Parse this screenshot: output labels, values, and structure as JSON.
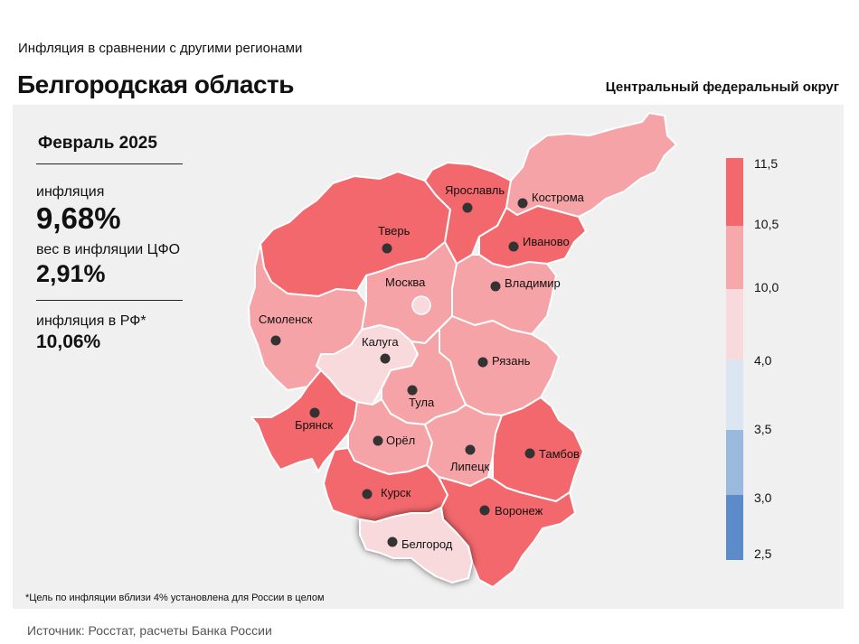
{
  "header": {
    "subtitle": "Инфляция  в сравнении  с другими  регионами",
    "title": "Белгородская область",
    "district": "Центральный федеральный округ"
  },
  "stats": {
    "period": "Февраль 2025",
    "inflation_label": "инфляция",
    "inflation_value": "9,68%",
    "weight_label": "вес в инфляции  ЦФО",
    "weight_value": "2,91%",
    "rf_label": "инфляция  в РФ*",
    "rf_value": "10,06%"
  },
  "footnote": "*Цель по инфляции вблизи 4% установлена для России в целом",
  "source": "Источник: Росстат, расчеты Банка России",
  "legend": {
    "ticks": [
      "11,5",
      "10,5",
      "10,0",
      "4,0",
      "3,5",
      "3,0",
      "2,5"
    ],
    "colors": [
      "#f2686c",
      "#f7a8aa",
      "#f8dadc",
      "#dce6f3",
      "#9bb8dd",
      "#5b8bc8"
    ]
  },
  "colors": {
    "high": "#f2686c",
    "mid": "#f5a3a6",
    "low": "#f8dadc",
    "highlight_region": "Белгород"
  },
  "map": {
    "regions": [
      {
        "name": "Тверь",
        "band": "high"
      },
      {
        "name": "Ярославль",
        "band": "high"
      },
      {
        "name": "Кострома",
        "band": "mid"
      },
      {
        "name": "Иваново",
        "band": "high"
      },
      {
        "name": "Москва",
        "band": "mid"
      },
      {
        "name": "Владимир",
        "band": "mid"
      },
      {
        "name": "Смоленск",
        "band": "mid"
      },
      {
        "name": "Калуга",
        "band": "low"
      },
      {
        "name": "Рязань",
        "band": "mid"
      },
      {
        "name": "Тула",
        "band": "mid"
      },
      {
        "name": "Брянск",
        "band": "high"
      },
      {
        "name": "Орёл",
        "band": "mid"
      },
      {
        "name": "Липецк",
        "band": "mid"
      },
      {
        "name": "Тамбов",
        "band": "high"
      },
      {
        "name": "Курск",
        "band": "high"
      },
      {
        "name": "Воронеж",
        "band": "high"
      },
      {
        "name": "Белгород",
        "band": "low"
      }
    ]
  }
}
